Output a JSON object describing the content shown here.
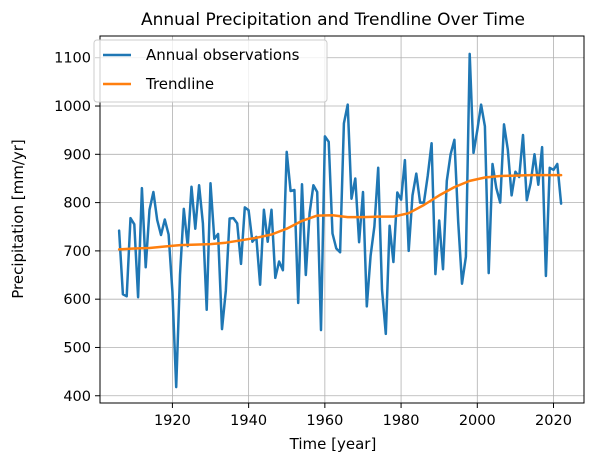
{
  "chart_data": {
    "type": "line",
    "title": "Annual Precipitation and Trendline Over Time",
    "xlabel": "Time [year]",
    "ylabel": "Precipitation [mm/yr]",
    "xlim": [
      1901,
      2028
    ],
    "ylim": [
      385,
      1145
    ],
    "xticks": [
      1920,
      1940,
      1960,
      1980,
      2000,
      2020
    ],
    "yticks": [
      400,
      500,
      600,
      700,
      800,
      900,
      1000,
      1100
    ],
    "grid": true,
    "legend_position": "upper-left",
    "series": [
      {
        "name": "Annual observations",
        "color": "#1f77b4",
        "x": [
          1906,
          1907,
          1908,
          1909,
          1910,
          1911,
          1912,
          1913,
          1914,
          1915,
          1916,
          1917,
          1918,
          1919,
          1920,
          1921,
          1922,
          1923,
          1924,
          1925,
          1926,
          1927,
          1928,
          1929,
          1930,
          1931,
          1932,
          1933,
          1934,
          1935,
          1936,
          1937,
          1938,
          1939,
          1940,
          1941,
          1942,
          1943,
          1944,
          1945,
          1946,
          1947,
          1948,
          1949,
          1950,
          1951,
          1952,
          1953,
          1954,
          1955,
          1956,
          1957,
          1958,
          1959,
          1960,
          1961,
          1962,
          1963,
          1964,
          1965,
          1966,
          1967,
          1968,
          1969,
          1970,
          1971,
          1972,
          1973,
          1974,
          1975,
          1976,
          1977,
          1978,
          1979,
          1980,
          1981,
          1982,
          1983,
          1984,
          1985,
          1986,
          1987,
          1988,
          1989,
          1990,
          1991,
          1992,
          1993,
          1994,
          1995,
          1996,
          1997,
          1998,
          1999,
          2000,
          2001,
          2002,
          2003,
          2004,
          2005,
          2006,
          2007,
          2008,
          2009,
          2010,
          2011,
          2012,
          2013,
          2014,
          2015,
          2016,
          2017,
          2018,
          2019,
          2020,
          2021,
          2022
        ],
        "y": [
          742,
          610,
          606,
          768,
          755,
          604,
          830,
          666,
          785,
          822,
          764,
          733,
          765,
          734,
          616,
          418,
          650,
          787,
          710,
          833,
          746,
          836,
          757,
          578,
          840,
          725,
          735,
          538,
          617,
          767,
          768,
          757,
          673,
          790,
          784,
          719,
          729,
          630,
          785,
          719,
          785,
          644,
          678,
          660,
          905,
          824,
          826,
          592,
          838,
          650,
          778,
          836,
          822,
          536,
          937,
          926,
          736,
          705,
          697,
          964,
          1003,
          808,
          850,
          718,
          822,
          585,
          690,
          751,
          872,
          620,
          528,
          752,
          677,
          821,
          806,
          888,
          700,
          815,
          860,
          800,
          800,
          855,
          923,
          652,
          763,
          662,
          845,
          900,
          930,
          760,
          632,
          688,
          1108,
          903,
          950,
          1003,
          958,
          654,
          880,
          830,
          800,
          962,
          910,
          815,
          864,
          853,
          940,
          805,
          840,
          900,
          837,
          915,
          648,
          872,
          868,
          880,
          798
        ]
      },
      {
        "name": "Trendline",
        "color": "#ff7f0e",
        "x": [
          1906,
          1910,
          1914,
          1918,
          1922,
          1926,
          1930,
          1934,
          1938,
          1942,
          1946,
          1950,
          1954,
          1958,
          1962,
          1966,
          1970,
          1974,
          1978,
          1982,
          1986,
          1990,
          1994,
          1998,
          2002,
          2006,
          2010,
          2014,
          2018,
          2022
        ],
        "y": [
          703,
          705,
          706,
          709,
          712,
          713,
          714,
          717,
          722,
          727,
          734,
          746,
          762,
          773,
          774,
          770,
          770,
          771,
          771,
          778,
          795,
          815,
          832,
          845,
          852,
          855,
          856,
          857,
          857,
          857
        ]
      }
    ]
  }
}
